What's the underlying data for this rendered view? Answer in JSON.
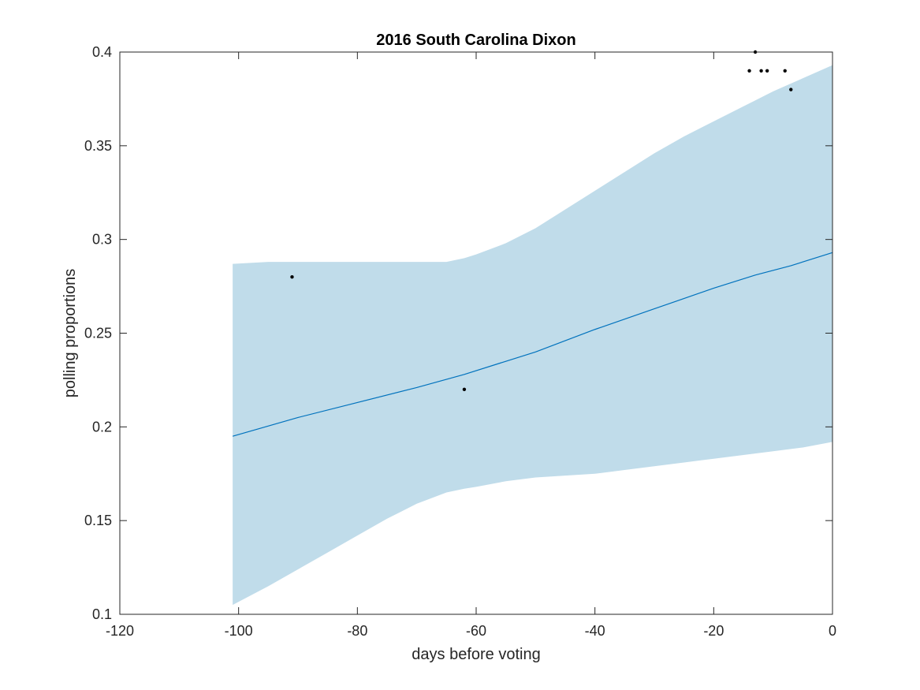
{
  "chart_data": {
    "type": "line",
    "title": "2016 South Carolina Dixon",
    "xlabel": "days before voting",
    "ylabel": "polling proportions",
    "xlim": [
      -120,
      0
    ],
    "ylim": [
      0.1,
      0.4
    ],
    "xticks": [
      -120,
      -100,
      -80,
      -60,
      -40,
      -20,
      0
    ],
    "yticks": [
      0.1,
      0.15,
      0.2,
      0.25,
      0.3,
      0.35,
      0.4
    ],
    "xtick_labels": [
      "-120",
      "-100",
      "-80",
      "-60",
      "-40",
      "-20",
      "0"
    ],
    "ytick_labels": [
      "0.1",
      "0.15",
      "0.2",
      "0.25",
      "0.3",
      "0.35",
      "0.4"
    ],
    "grid": false,
    "colors": {
      "line": "#0072bd",
      "band": "#c0dcea",
      "points": "#000000",
      "axes": "#262626"
    },
    "trend": {
      "x": [
        -101,
        -90,
        -80,
        -70,
        -62,
        -55,
        -50,
        -40,
        -30,
        -20,
        -13,
        -7,
        0
      ],
      "y": [
        0.195,
        0.205,
        0.213,
        0.221,
        0.228,
        0.235,
        0.24,
        0.252,
        0.263,
        0.274,
        0.281,
        0.286,
        0.293
      ]
    },
    "band": {
      "x": [
        -101,
        -95,
        -90,
        -85,
        -80,
        -75,
        -70,
        -65,
        -62,
        -60,
        -55,
        -50,
        -45,
        -40,
        -35,
        -30,
        -25,
        -20,
        -15,
        -10,
        -5,
        0
      ],
      "upper": [
        0.287,
        0.288,
        0.288,
        0.288,
        0.288,
        0.288,
        0.288,
        0.288,
        0.29,
        0.292,
        0.298,
        0.306,
        0.316,
        0.326,
        0.336,
        0.346,
        0.355,
        0.363,
        0.371,
        0.379,
        0.386,
        0.393
      ],
      "lower": [
        0.105,
        0.115,
        0.124,
        0.133,
        0.142,
        0.151,
        0.159,
        0.165,
        0.167,
        0.168,
        0.171,
        0.173,
        0.174,
        0.175,
        0.177,
        0.179,
        0.181,
        0.183,
        0.185,
        0.187,
        0.189,
        0.192
      ]
    },
    "points": [
      {
        "x": -91,
        "y": 0.28
      },
      {
        "x": -62,
        "y": 0.22
      },
      {
        "x": -14,
        "y": 0.39
      },
      {
        "x": -13,
        "y": 0.4
      },
      {
        "x": -12,
        "y": 0.39
      },
      {
        "x": -11,
        "y": 0.39
      },
      {
        "x": -8,
        "y": 0.39
      },
      {
        "x": -7,
        "y": 0.38
      }
    ]
  }
}
